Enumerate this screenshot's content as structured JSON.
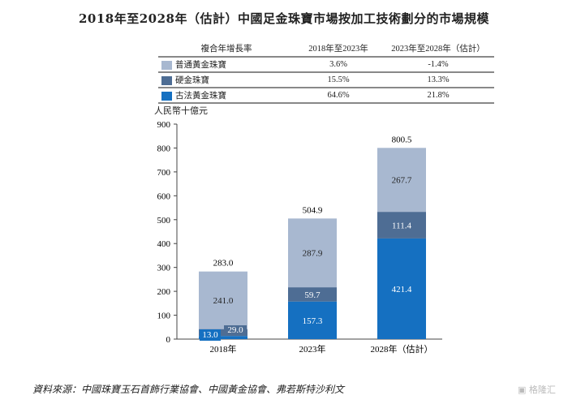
{
  "title": "2018年至2028年（估計）中國足金珠寶市場按加工技術劃分的市場規模",
  "table": {
    "headers": [
      "複合年增長率",
      "2018年至2023年",
      "2023年至2028年（估計）"
    ],
    "rows": [
      {
        "label": "普通黃金珠寶",
        "c1": "3.6%",
        "c2": "-1.4%"
      },
      {
        "label": "硬金珠寶",
        "c1": "15.5%",
        "c2": "13.3%"
      },
      {
        "label": "古法黃金珠寶",
        "c1": "64.6%",
        "c2": "21.8%"
      }
    ]
  },
  "source": "資料來源：中國珠寶玉石首飾行業協會、中國黃金協會、弗若斯特沙利文",
  "watermark": "格隆汇",
  "chart_data": {
    "type": "stacked-bar",
    "ylabel": "人民幣十億元",
    "ylim": [
      0,
      900
    ],
    "yticks": [
      0,
      100,
      200,
      300,
      400,
      500,
      600,
      700,
      800,
      900
    ],
    "categories": [
      "2018年",
      "2023年",
      "2028年（估計）"
    ],
    "series": [
      {
        "name": "古法黃金珠寶",
        "color": "#1570c1",
        "values": [
          13.0,
          157.3,
          421.4
        ]
      },
      {
        "name": "硬金珠寶",
        "color": "#4e6d94",
        "values": [
          29.0,
          59.7,
          111.4
        ]
      },
      {
        "name": "普通黃金珠寶",
        "color": "#a8b8d0",
        "values": [
          241.0,
          287.9,
          267.7
        ]
      }
    ],
    "totals": [
      283.0,
      504.9,
      800.5
    ],
    "grid": false,
    "legend": "top"
  }
}
